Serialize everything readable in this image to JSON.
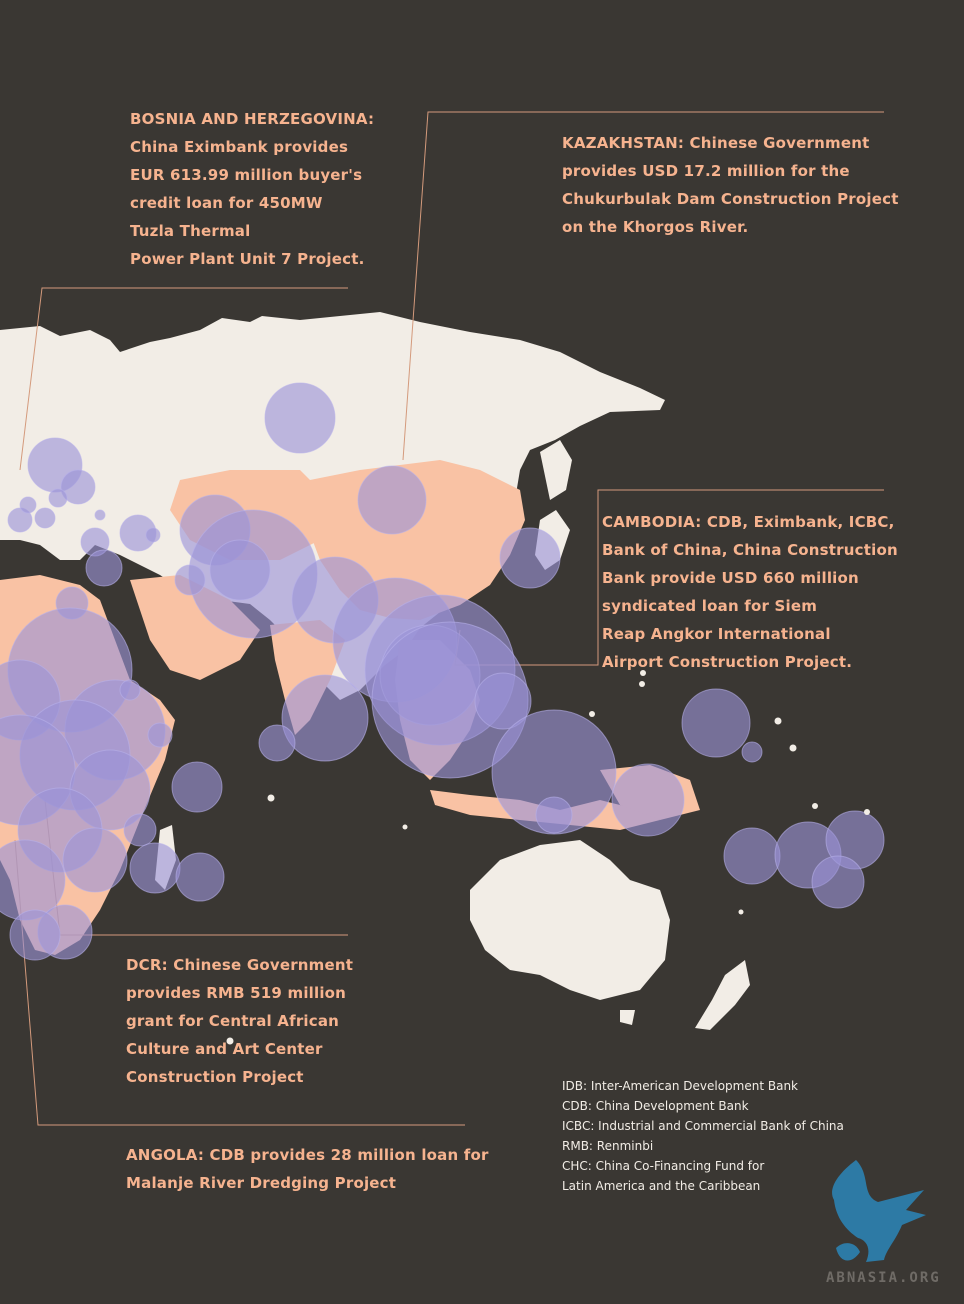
{
  "colors": {
    "background": "#3a3733",
    "land": "#f2ede6",
    "china_recipient_highlight": "#f9c2a4",
    "bubble": "#9b93d6",
    "callout_text": "#f6b38f",
    "leader_line": "#d49a7c",
    "legend_text": "#f2ede6",
    "logo": "#2d7aa5"
  },
  "callouts": {
    "bosnia": {
      "lines": [
        "BOSNIA AND HERZEGOVINA:",
        "China Eximbank provides",
        "EUR 613.99 million buyer's",
        "credit loan for 450MW",
        "Tuzla Thermal",
        "Power Plant Unit 7 Project."
      ]
    },
    "kazakhstan": {
      "lines": [
        "KAZAKHSTAN: Chinese Government",
        "provides USD 17.2 million for the",
        "Chukurbulak Dam Construction Project",
        "on the Khorgos River."
      ]
    },
    "cambodia": {
      "lines": [
        "CAMBODIA: CDB, Eximbank, ICBC,",
        "Bank of China, China Construction",
        "Bank provide USD 660 million",
        "syndicated loan for Siem",
        "Reap Angkor International",
        "Airport Construction Project."
      ]
    },
    "dcr": {
      "lines": [
        "DCR: Chinese Government",
        "provides RMB 519 million",
        "grant for Central African",
        "Culture and Art Center",
        "Construction Project"
      ]
    },
    "angola": {
      "lines": [
        "ANGOLA: CDB provides 28 million loan for",
        "Malanje River Dredging Project"
      ]
    }
  },
  "legend": {
    "lines": [
      "IDB: Inter-American Development Bank",
      "CDB: China Development Bank",
      "ICBC: Industrial and Commercial Bank of China",
      "RMB: Renminbi",
      "CHC: China Co-Financing Fund for",
      "Latin America and the Caribbean"
    ]
  },
  "watermark": {
    "text": "ABNASIA.ORG",
    "icon": "griffin-logo-icon"
  }
}
